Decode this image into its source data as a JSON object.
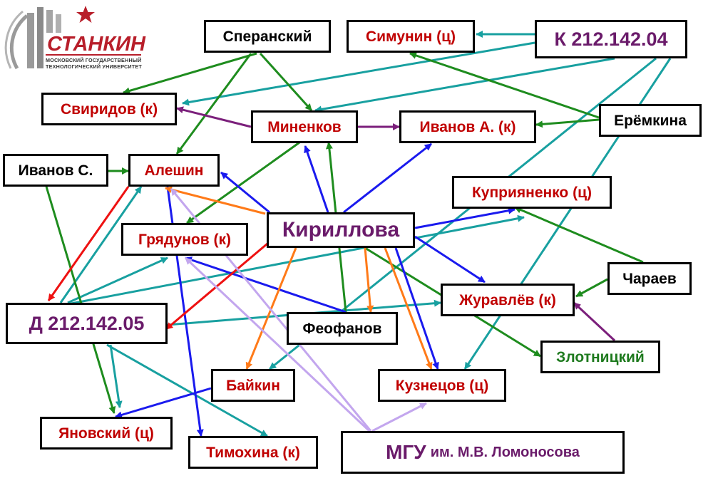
{
  "logo": {
    "word": "СТАНКИН",
    "line1": "МОСКОВСКИЙ ГОСУДАРСТВЕННЫЙ",
    "line2": "ТЕХНОЛОГИЧЕСКИЙ УНИВЕРСИТЕТ",
    "star_color": "#b81e2a",
    "building_color": "#9a9a9a"
  },
  "colors": {
    "green": "#1e8c1e",
    "teal": "#18a0a0",
    "purple": "#7b1f7b",
    "blue": "#1a1aee",
    "orange": "#ff7a18",
    "red": "#ee1111",
    "lilac": "#c3a6ee"
  },
  "nodes": {
    "speransky": "Сперанский",
    "simunin": "Симунин (ц)",
    "k_council": "К 212.142.04",
    "sviridov": "Свиридов (к)",
    "minenkov": "Миненков",
    "ivanov_a": "Иванов А. (к)",
    "eremkina": "Ерёмкина",
    "ivanov_s": "Иванов С.",
    "aleshin": "Алешин",
    "kupriyanenko": "Куприяненко (ц)",
    "gryadunov": "Грядунов (к)",
    "kirillova": "Кириллова",
    "charaev": "Чараев",
    "d_council": "Д 212.142.05",
    "zhuravlev": "Журавлёв (к)",
    "feofanov": "Феофанов",
    "zlotnitsky": "Злотницкий",
    "baikin": "Байкин",
    "kuznetsov": "Кузнецов (ц)",
    "yanovsky": "Яновский (ц)",
    "timokhina": "Тимохина (к)",
    "mgu_main": "МГУ",
    "mgu_sub": "им. М.В. Ломоносова"
  }
}
